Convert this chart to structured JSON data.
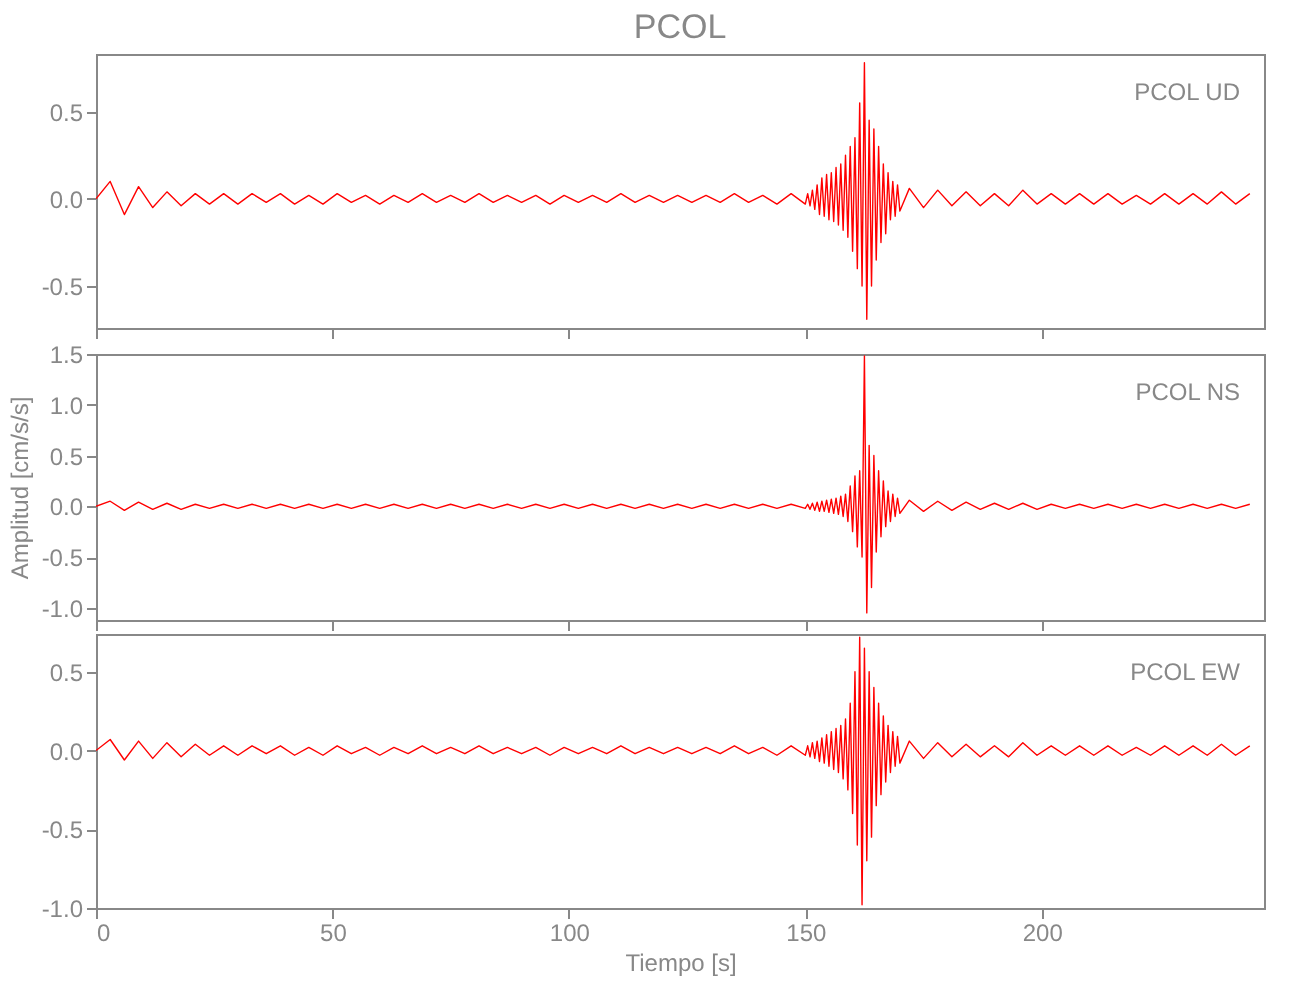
{
  "chart_data": [
    {
      "type": "line",
      "title": "PCOL",
      "annotations": [
        "PCOL   UD"
      ],
      "color": "#ff0000",
      "tick_labels": "y",
      "xlim": [
        0,
        247
      ],
      "ylim": [
        -0.74,
        0.83
      ],
      "xticks": [
        0,
        50,
        100,
        150,
        200
      ],
      "yticks": [
        {
          "value": -0.5,
          "label": "-0.5"
        },
        {
          "value": 0,
          "label": "0.0"
        },
        {
          "value": 0.5,
          "label": "0.5"
        }
      ],
      "x": [
        0,
        3,
        6,
        9,
        12,
        15,
        18,
        21,
        24,
        27,
        30,
        33,
        36,
        39,
        42,
        45,
        48,
        51,
        54,
        57,
        60,
        63,
        66,
        69,
        72,
        75,
        78,
        81,
        84,
        87,
        90,
        93,
        96,
        99,
        102,
        105,
        108,
        111,
        114,
        117,
        120,
        123,
        126,
        129,
        132,
        135,
        138,
        141,
        144,
        147,
        150,
        150.5,
        151,
        151.5,
        152,
        152.5,
        153,
        153.5,
        154,
        154.5,
        155,
        155.5,
        156,
        156.5,
        157,
        157.5,
        158,
        158.5,
        159,
        159.5,
        160,
        160.5,
        161,
        161.5,
        162,
        162.5,
        163,
        163.5,
        164,
        164.5,
        165,
        165.5,
        166,
        166.5,
        167,
        167.5,
        168,
        168.5,
        169,
        169.5,
        170,
        172,
        175,
        178,
        181,
        184,
        187,
        190,
        193,
        196,
        199,
        202,
        205,
        208,
        211,
        214,
        217,
        220,
        223,
        226,
        229,
        232,
        235,
        238,
        241,
        244
      ],
      "values": [
        0.0,
        0.1,
        -0.09,
        0.07,
        -0.05,
        0.04,
        -0.04,
        0.03,
        -0.03,
        0.03,
        -0.03,
        0.03,
        -0.02,
        0.03,
        -0.03,
        0.02,
        -0.03,
        0.03,
        -0.02,
        0.02,
        -0.03,
        0.02,
        -0.02,
        0.03,
        -0.02,
        0.02,
        -0.02,
        0.03,
        -0.02,
        0.02,
        -0.02,
        0.02,
        -0.03,
        0.02,
        -0.02,
        0.02,
        -0.02,
        0.03,
        -0.02,
        0.02,
        -0.02,
        0.02,
        -0.02,
        0.02,
        -0.02,
        0.03,
        -0.02,
        0.02,
        -0.03,
        0.03,
        -0.03,
        0.03,
        -0.04,
        0.05,
        -0.06,
        0.08,
        -0.09,
        0.12,
        -0.1,
        0.14,
        -0.12,
        0.15,
        -0.13,
        0.18,
        -0.15,
        0.2,
        -0.18,
        0.25,
        -0.22,
        0.3,
        -0.3,
        0.35,
        -0.4,
        0.55,
        -0.5,
        0.78,
        -0.69,
        0.45,
        -0.5,
        0.4,
        -0.35,
        0.3,
        -0.25,
        0.2,
        -0.2,
        0.15,
        -0.12,
        0.1,
        -0.1,
        0.08,
        -0.07,
        0.06,
        -0.05,
        0.05,
        -0.04,
        0.04,
        -0.04,
        0.03,
        -0.04,
        0.05,
        -0.03,
        0.03,
        -0.03,
        0.03,
        -0.03,
        0.03,
        -0.03,
        0.02,
        -0.03,
        0.03,
        -0.03,
        0.03,
        -0.03,
        0.04,
        -0.03,
        0.03
      ]
    },
    {
      "type": "line",
      "ylabel": "Amplitud [cm/s/s]",
      "annotations": [
        "PCOL   NS"
      ],
      "color": "#ff0000",
      "tick_labels": "y",
      "xlim": [
        0,
        247
      ],
      "ylim": [
        -1.12,
        1.5
      ],
      "xticks": [
        0,
        50,
        100,
        150,
        200
      ],
      "yticks": [
        {
          "value": -1,
          "label": "-1.0"
        },
        {
          "value": -0.5,
          "label": "-0.5"
        },
        {
          "value": 0,
          "label": "0.0"
        },
        {
          "value": 0.5,
          "label": "0.5"
        },
        {
          "value": 1,
          "label": "1.0"
        },
        {
          "value": 1.5,
          "label": "1.5"
        }
      ],
      "x": [
        0,
        3,
        6,
        9,
        12,
        15,
        18,
        21,
        24,
        27,
        30,
        33,
        36,
        39,
        42,
        45,
        48,
        51,
        54,
        57,
        60,
        63,
        66,
        69,
        72,
        75,
        78,
        81,
        84,
        87,
        90,
        93,
        96,
        99,
        102,
        105,
        108,
        111,
        114,
        117,
        120,
        123,
        126,
        129,
        132,
        135,
        138,
        141,
        144,
        147,
        150,
        150.5,
        151,
        151.5,
        152,
        152.5,
        153,
        153.5,
        154,
        154.5,
        155,
        155.5,
        156,
        156.5,
        157,
        157.5,
        158,
        158.5,
        159,
        159.5,
        160,
        160.5,
        161,
        161.5,
        162,
        162.5,
        163,
        163.5,
        164,
        164.5,
        165,
        165.5,
        166,
        166.5,
        167,
        167.5,
        168,
        168.5,
        169,
        169.5,
        170,
        172,
        175,
        178,
        181,
        184,
        187,
        190,
        193,
        196,
        199,
        202,
        205,
        208,
        211,
        214,
        217,
        220,
        223,
        226,
        229,
        232,
        235,
        238,
        241,
        244
      ],
      "values": [
        0.0,
        0.05,
        -0.04,
        0.04,
        -0.03,
        0.03,
        -0.03,
        0.02,
        -0.02,
        0.02,
        -0.02,
        0.02,
        -0.02,
        0.02,
        -0.02,
        0.02,
        -0.02,
        0.02,
        -0.02,
        0.02,
        -0.02,
        0.02,
        -0.02,
        0.02,
        -0.02,
        0.02,
        -0.02,
        0.02,
        -0.02,
        0.02,
        -0.02,
        0.02,
        -0.02,
        0.02,
        -0.02,
        0.02,
        -0.02,
        0.02,
        -0.02,
        0.02,
        -0.02,
        0.02,
        -0.02,
        0.02,
        -0.02,
        0.02,
        -0.02,
        0.02,
        -0.02,
        0.02,
        -0.02,
        0.02,
        -0.03,
        0.03,
        -0.04,
        0.04,
        -0.05,
        0.05,
        -0.05,
        0.06,
        -0.06,
        0.07,
        -0.07,
        0.08,
        -0.08,
        0.1,
        -0.1,
        0.12,
        -0.15,
        0.2,
        -0.25,
        0.3,
        -0.4,
        0.35,
        -0.5,
        1.48,
        -1.05,
        0.6,
        -0.8,
        0.5,
        -0.45,
        0.35,
        -0.3,
        0.25,
        -0.2,
        0.15,
        -0.15,
        0.12,
        -0.1,
        0.08,
        -0.07,
        0.06,
        -0.05,
        0.05,
        -0.04,
        0.04,
        -0.03,
        0.03,
        -0.03,
        0.03,
        -0.03,
        0.02,
        -0.02,
        0.02,
        -0.02,
        0.02,
        -0.02,
        0.02,
        -0.02,
        0.02,
        -0.02,
        0.02,
        -0.02,
        0.02,
        -0.02,
        0.02
      ]
    },
    {
      "type": "line",
      "xlabel": "Tiempo [s]",
      "annotations": [
        "PCOL   EW"
      ],
      "color": "#ff0000",
      "xlim": [
        0,
        247
      ],
      "ylim": [
        -1.0,
        0.74
      ],
      "xticks": [
        0,
        50,
        100,
        150,
        200
      ],
      "yticks": [
        {
          "value": -1,
          "label": "-1.0"
        },
        {
          "value": -0.5,
          "label": "-0.5"
        },
        {
          "value": 0,
          "label": "0.0"
        },
        {
          "value": 0.5,
          "label": "0.5"
        }
      ],
      "x": [
        0,
        3,
        6,
        9,
        12,
        15,
        18,
        21,
        24,
        27,
        30,
        33,
        36,
        39,
        42,
        45,
        48,
        51,
        54,
        57,
        60,
        63,
        66,
        69,
        72,
        75,
        78,
        81,
        84,
        87,
        90,
        93,
        96,
        99,
        102,
        105,
        108,
        111,
        114,
        117,
        120,
        123,
        126,
        129,
        132,
        135,
        138,
        141,
        144,
        147,
        150,
        150.5,
        151,
        151.5,
        152,
        152.5,
        153,
        153.5,
        154,
        154.5,
        155,
        155.5,
        156,
        156.5,
        157,
        157.5,
        158,
        158.5,
        159,
        159.5,
        160,
        160.5,
        161,
        161.5,
        162,
        162.5,
        163,
        163.5,
        164,
        164.5,
        165,
        165.5,
        166,
        166.5,
        167,
        167.5,
        168,
        168.5,
        169,
        169.5,
        170,
        172,
        175,
        178,
        181,
        184,
        187,
        190,
        193,
        196,
        199,
        202,
        205,
        208,
        211,
        214,
        217,
        220,
        223,
        226,
        229,
        232,
        235,
        238,
        241,
        244
      ],
      "values": [
        0.0,
        0.07,
        -0.06,
        0.06,
        -0.05,
        0.05,
        -0.04,
        0.04,
        -0.03,
        0.03,
        -0.03,
        0.03,
        -0.02,
        0.03,
        -0.03,
        0.02,
        -0.03,
        0.03,
        -0.02,
        0.02,
        -0.03,
        0.02,
        -0.02,
        0.03,
        -0.02,
        0.02,
        -0.02,
        0.03,
        -0.02,
        0.02,
        -0.02,
        0.02,
        -0.03,
        0.02,
        -0.02,
        0.02,
        -0.02,
        0.03,
        -0.02,
        0.02,
        -0.02,
        0.02,
        -0.02,
        0.02,
        -0.02,
        0.03,
        -0.02,
        0.02,
        -0.03,
        0.03,
        -0.03,
        0.03,
        -0.04,
        0.05,
        -0.05,
        0.06,
        -0.07,
        0.08,
        -0.08,
        0.1,
        -0.1,
        0.12,
        -0.12,
        0.14,
        -0.14,
        0.16,
        -0.18,
        0.2,
        -0.25,
        0.3,
        -0.4,
        0.5,
        -0.6,
        0.72,
        -0.98,
        0.65,
        -0.7,
        0.5,
        -0.55,
        0.4,
        -0.35,
        0.3,
        -0.28,
        0.22,
        -0.2,
        0.16,
        -0.14,
        0.12,
        -0.1,
        0.09,
        -0.08,
        0.06,
        -0.05,
        0.05,
        -0.04,
        0.04,
        -0.04,
        0.03,
        -0.04,
        0.05,
        -0.03,
        0.03,
        -0.03,
        0.03,
        -0.03,
        0.03,
        -0.03,
        0.02,
        -0.03,
        0.03,
        -0.03,
        0.03,
        -0.03,
        0.04,
        -0.03,
        0.03
      ]
    }
  ]
}
